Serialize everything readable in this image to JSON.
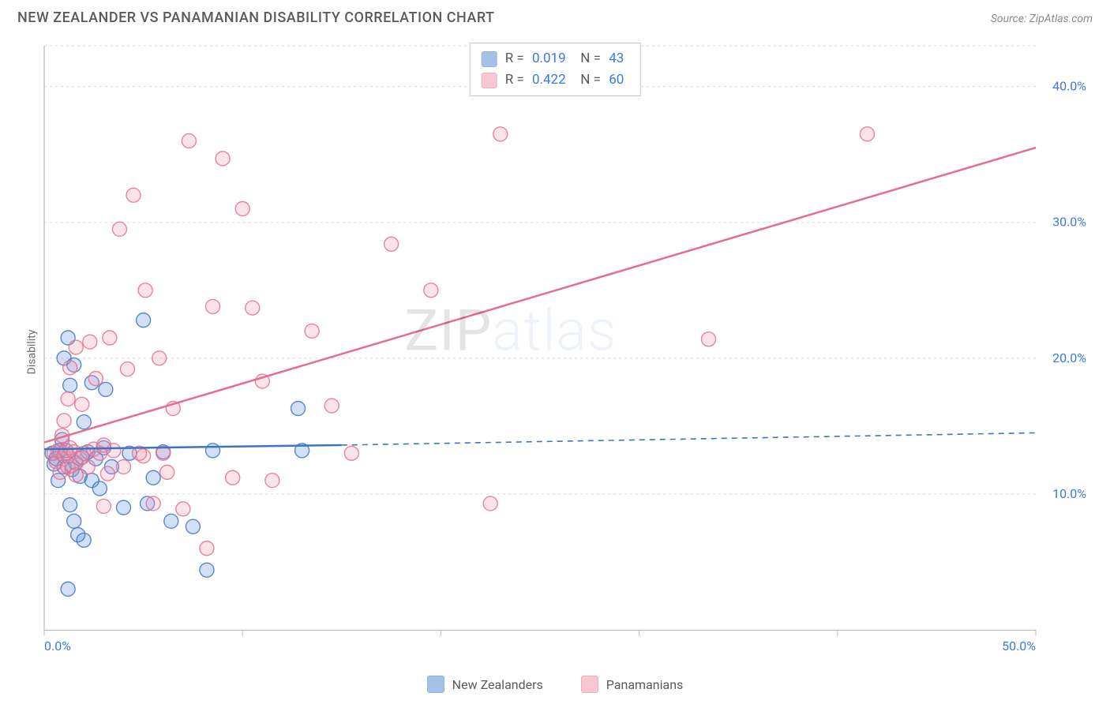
{
  "title": "NEW ZEALANDER VS PANAMANIAN DISABILITY CORRELATION CHART",
  "source_label": "Source: ZipAtlas.com",
  "ylabel": "Disability",
  "watermark_a": "ZIP",
  "watermark_b": "atlas",
  "chart": {
    "type": "scatter",
    "background_color": "#ffffff",
    "grid_color": "#d8d8d8",
    "axis_color": "#bcbcbc",
    "xlim": [
      0,
      50
    ],
    "ylim": [
      0,
      43
    ],
    "x_ticks": [
      0,
      10,
      20,
      30,
      40,
      50
    ],
    "x_tick_labels": [
      "0.0%",
      "",
      "",
      "",
      "",
      "50.0%"
    ],
    "y_ticks": [
      10,
      20,
      30,
      40
    ],
    "y_tick_labels": [
      "10.0%",
      "20.0%",
      "30.0%",
      "40.0%"
    ],
    "marker_radius": 9,
    "marker_fill_opacity": 0.28,
    "marker_stroke_opacity": 0.85,
    "line_width": 2.5,
    "series": [
      {
        "key": "nz",
        "label": "New Zealanders",
        "color": "#5b8fd6",
        "stroke": "#3f73c4",
        "R": "0.019",
        "N": "43",
        "trend_solid": {
          "x1": 0,
          "y1": 13.3,
          "x2": 15,
          "y2": 13.6
        },
        "trend_dash": {
          "x1": 15,
          "y1": 13.6,
          "x2": 50,
          "y2": 14.5
        },
        "points": [
          [
            0.4,
            13.0
          ],
          [
            0.5,
            12.2
          ],
          [
            0.6,
            12.6
          ],
          [
            0.7,
            11.0
          ],
          [
            0.8,
            13.2
          ],
          [
            0.9,
            14.0
          ],
          [
            1.0,
            12.0
          ],
          [
            1.0,
            20.0
          ],
          [
            1.1,
            13.2
          ],
          [
            1.2,
            12.8
          ],
          [
            1.2,
            21.5
          ],
          [
            1.3,
            9.2
          ],
          [
            1.3,
            18.0
          ],
          [
            1.4,
            11.8
          ],
          [
            1.5,
            8.0
          ],
          [
            1.5,
            19.5
          ],
          [
            1.6,
            12.3
          ],
          [
            1.7,
            7.0
          ],
          [
            1.8,
            11.3
          ],
          [
            1.9,
            12.7
          ],
          [
            2.0,
            6.6
          ],
          [
            2.0,
            15.3
          ],
          [
            2.2,
            13.1
          ],
          [
            2.4,
            11.0
          ],
          [
            2.4,
            18.2
          ],
          [
            2.6,
            12.6
          ],
          [
            2.8,
            10.4
          ],
          [
            3.0,
            13.4
          ],
          [
            3.1,
            17.7
          ],
          [
            3.4,
            12.0
          ],
          [
            4.0,
            9.0
          ],
          [
            4.3,
            13.0
          ],
          [
            5.0,
            22.8
          ],
          [
            5.2,
            9.3
          ],
          [
            5.5,
            11.2
          ],
          [
            6.0,
            13.1
          ],
          [
            6.4,
            8.0
          ],
          [
            7.5,
            7.6
          ],
          [
            8.2,
            4.4
          ],
          [
            8.5,
            13.2
          ],
          [
            1.2,
            3.0
          ],
          [
            12.8,
            16.3
          ],
          [
            13.0,
            13.2
          ]
        ]
      },
      {
        "key": "pa",
        "label": "Panamanians",
        "color": "#f19ab2",
        "stroke": "#e56e90",
        "R": "0.422",
        "N": "60",
        "trend_solid": {
          "x1": 0,
          "y1": 13.8,
          "x2": 50,
          "y2": 35.5
        },
        "trend_dash": null,
        "points": [
          [
            0.5,
            13.0
          ],
          [
            0.6,
            12.4
          ],
          [
            0.7,
            13.2
          ],
          [
            0.8,
            11.6
          ],
          [
            0.9,
            14.3
          ],
          [
            1.0,
            12.8
          ],
          [
            1.0,
            15.4
          ],
          [
            1.1,
            13.2
          ],
          [
            1.2,
            12.0
          ],
          [
            1.2,
            17.0
          ],
          [
            1.3,
            13.4
          ],
          [
            1.3,
            19.3
          ],
          [
            1.4,
            12.1
          ],
          [
            1.5,
            13.1
          ],
          [
            1.6,
            11.4
          ],
          [
            1.6,
            20.8
          ],
          [
            1.8,
            12.6
          ],
          [
            1.9,
            16.6
          ],
          [
            2.0,
            13.0
          ],
          [
            2.2,
            12.0
          ],
          [
            2.3,
            21.2
          ],
          [
            2.5,
            13.3
          ],
          [
            2.6,
            18.5
          ],
          [
            2.8,
            13.0
          ],
          [
            3.0,
            9.1
          ],
          [
            3.2,
            11.5
          ],
          [
            3.3,
            21.5
          ],
          [
            3.5,
            13.2
          ],
          [
            3.8,
            29.5
          ],
          [
            4.0,
            12.0
          ],
          [
            4.2,
            19.2
          ],
          [
            4.5,
            32.0
          ],
          [
            5.0,
            12.8
          ],
          [
            5.1,
            25.0
          ],
          [
            5.5,
            9.3
          ],
          [
            5.8,
            20.0
          ],
          [
            6.0,
            13.0
          ],
          [
            6.5,
            16.3
          ],
          [
            7.0,
            8.9
          ],
          [
            7.3,
            36.0
          ],
          [
            8.2,
            6.0
          ],
          [
            8.5,
            23.8
          ],
          [
            9.0,
            34.7
          ],
          [
            9.5,
            11.2
          ],
          [
            10.0,
            31.0
          ],
          [
            10.5,
            23.7
          ],
          [
            11.0,
            18.3
          ],
          [
            11.5,
            11.0
          ],
          [
            13.5,
            22.0
          ],
          [
            14.5,
            16.5
          ],
          [
            15.5,
            13.0
          ],
          [
            17.5,
            28.4
          ],
          [
            19.5,
            25.0
          ],
          [
            22.5,
            9.3
          ],
          [
            23.0,
            36.5
          ],
          [
            33.5,
            21.4
          ],
          [
            41.5,
            36.5
          ],
          [
            3.0,
            13.6
          ],
          [
            4.8,
            13.0
          ],
          [
            6.2,
            11.6
          ]
        ]
      }
    ]
  },
  "legend_top": {
    "R_label": "R =",
    "N_label": "N ="
  }
}
